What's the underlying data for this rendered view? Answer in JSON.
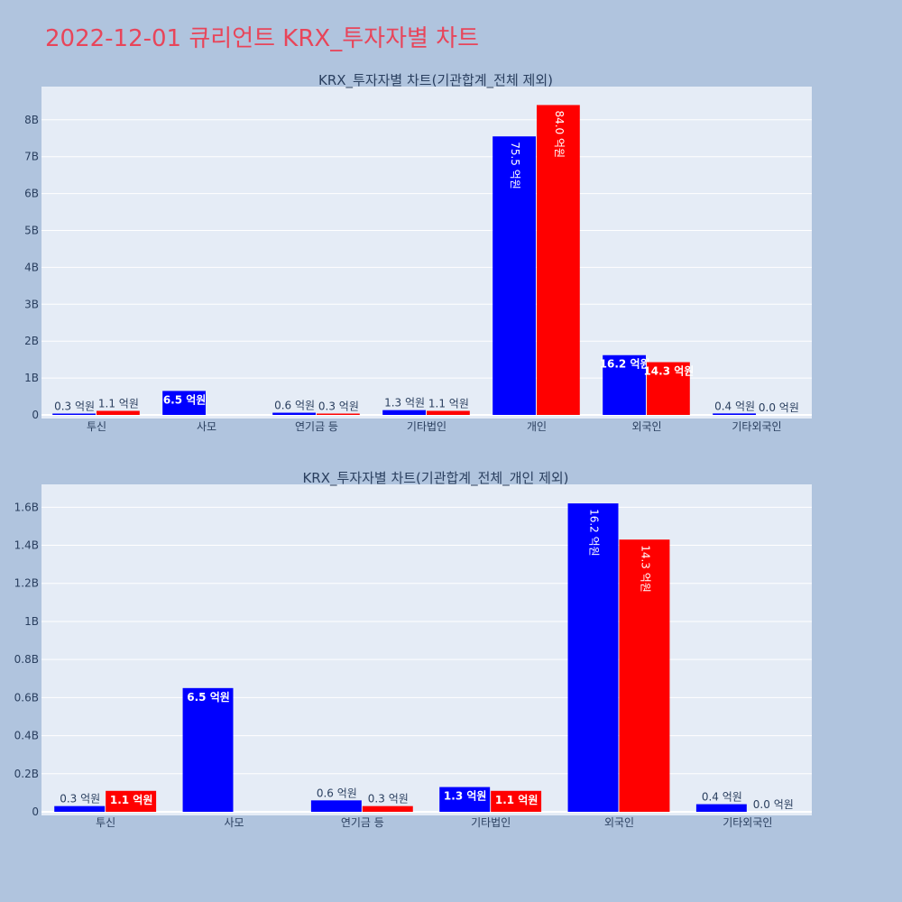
{
  "page": {
    "title": "2022-12-01 큐리언트 KRX_투자자별 차트"
  },
  "chart_data": [
    {
      "type": "bar",
      "title": "KRX_투자자별 차트(기관합계_전체 제외)",
      "categories": [
        "투신",
        "사모",
        "연기금 등",
        "기타법인",
        "개인",
        "외국인",
        "기타외국인"
      ],
      "series": [
        {
          "color": "#0000ff",
          "values": [
            30000000,
            650000000,
            60000000,
            130000000,
            7550000000,
            1620000000,
            40000000
          ],
          "labels": [
            "0.3 억원",
            "6.5 억원",
            "0.6 억원",
            "1.3 억원",
            "75.5 억원",
            "16.2 억원",
            "0.4 억원"
          ]
        },
        {
          "color": "#ff0000",
          "values": [
            110000000,
            0,
            30000000,
            110000000,
            8400000000,
            1430000000,
            0
          ],
          "labels": [
            "1.1 억원",
            "",
            "0.3 억원",
            "1.1 억원",
            "84.0 억원",
            "14.3 억원",
            "0.0 억원"
          ]
        }
      ],
      "ylim": [
        0,
        8900000000
      ],
      "yticks": [
        0,
        1000000000,
        2000000000,
        3000000000,
        4000000000,
        5000000000,
        6000000000,
        7000000000,
        8000000000
      ],
      "ytick_labels": [
        "0",
        "1B",
        "2B",
        "3B",
        "4B",
        "5B",
        "6B",
        "7B",
        "8B"
      ],
      "grid": true
    },
    {
      "type": "bar",
      "title": "KRX_투자자별 차트(기관합계_전체_개인 제외)",
      "categories": [
        "투신",
        "사모",
        "연기금 등",
        "기타법인",
        "외국인",
        "기타외국인"
      ],
      "series": [
        {
          "color": "#0000ff",
          "values": [
            30000000,
            650000000,
            60000000,
            130000000,
            1620000000,
            40000000
          ],
          "labels": [
            "0.3 억원",
            "6.5 억원",
            "0.6 억원",
            "1.3 억원",
            "16.2 억원",
            "0.4 억원"
          ]
        },
        {
          "color": "#ff0000",
          "values": [
            110000000,
            0,
            30000000,
            110000000,
            1430000000,
            0
          ],
          "labels": [
            "1.1 억원",
            "",
            "0.3 억원",
            "1.1 억원",
            "14.3 억원",
            "0.0 억원"
          ]
        }
      ],
      "ylim": [
        0,
        1720000000
      ],
      "yticks": [
        0,
        200000000,
        400000000,
        600000000,
        800000000,
        1000000000,
        1200000000,
        1400000000,
        1600000000
      ],
      "ytick_labels": [
        "0",
        "0.2B",
        "0.4B",
        "0.6B",
        "0.8B",
        "1B",
        "1.2B",
        "1.4B",
        "1.6B"
      ],
      "grid": true
    }
  ]
}
